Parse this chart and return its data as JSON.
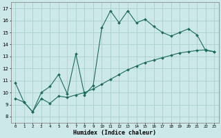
{
  "xlabel": "Humidex (Indice chaleur)",
  "bg_color": "#cce8e8",
  "grid_color": "#aad0d0",
  "line_color": "#1a6b5a",
  "xlim": [
    -0.5,
    23.5
  ],
  "ylim": [
    7.5,
    17.5
  ],
  "xticks": [
    0,
    1,
    2,
    3,
    4,
    5,
    6,
    7,
    8,
    9,
    10,
    11,
    12,
    13,
    14,
    15,
    16,
    17,
    18,
    19,
    20,
    21,
    22,
    23
  ],
  "yticks": [
    8,
    9,
    10,
    11,
    12,
    13,
    14,
    15,
    16,
    17
  ],
  "line1_x": [
    0,
    1,
    2,
    3,
    4,
    5,
    6,
    7,
    8,
    9,
    10,
    11,
    12,
    13,
    14,
    15,
    16,
    17,
    18,
    19,
    20,
    21,
    22,
    23
  ],
  "line1_y": [
    10.8,
    9.2,
    8.4,
    10.0,
    10.5,
    11.5,
    9.9,
    13.2,
    9.8,
    10.6,
    15.4,
    16.8,
    15.8,
    16.8,
    15.8,
    16.1,
    15.5,
    15.0,
    14.7,
    15.0,
    15.3,
    14.8,
    13.5,
    13.4
  ],
  "line2_x": [
    0,
    1,
    2,
    3,
    4,
    5,
    6,
    7,
    8,
    9,
    10,
    11,
    12,
    13,
    14,
    15,
    16,
    17,
    18,
    19,
    20,
    21,
    22,
    23
  ],
  "line2_y": [
    9.5,
    9.2,
    8.4,
    9.5,
    9.1,
    9.7,
    9.6,
    9.8,
    10.0,
    10.3,
    10.7,
    11.1,
    11.5,
    11.9,
    12.2,
    12.5,
    12.7,
    12.9,
    13.1,
    13.3,
    13.4,
    13.5,
    13.55,
    13.4
  ]
}
